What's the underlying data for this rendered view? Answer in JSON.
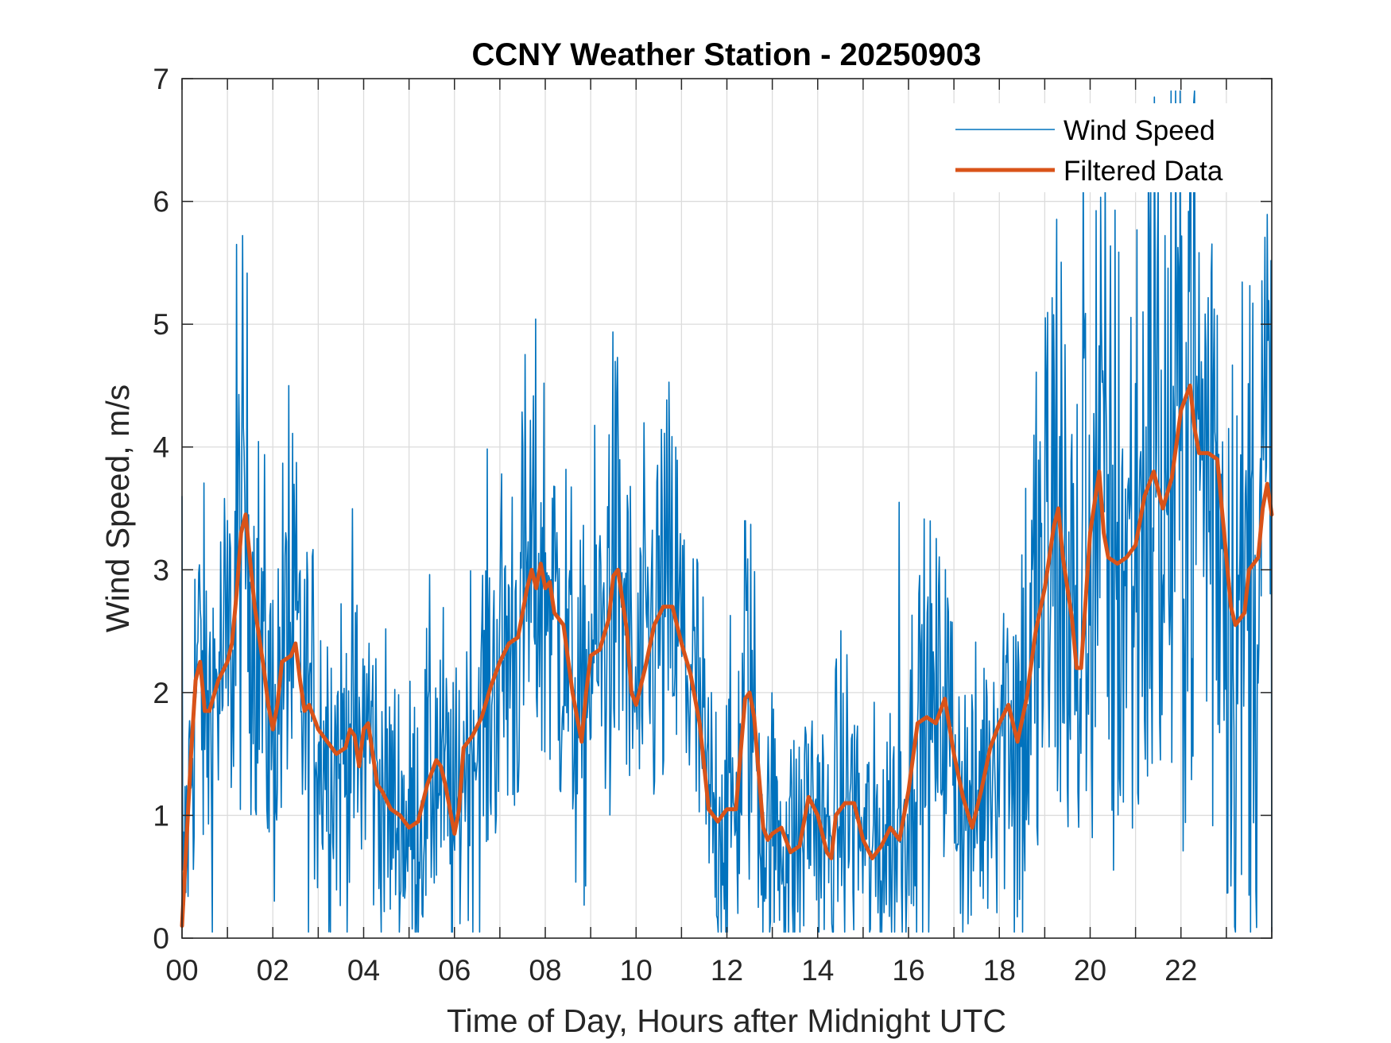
{
  "chart_data": {
    "type": "line",
    "title": "CCNY Weather Station - 20250903",
    "xlabel": "Time of Day, Hours after Midnight UTC",
    "ylabel": "Wind Speed, m/s",
    "xlim": [
      0,
      24
    ],
    "ylim": [
      0,
      7
    ],
    "xticks": [
      0,
      2,
      4,
      6,
      8,
      10,
      12,
      14,
      16,
      18,
      20,
      22
    ],
    "xtick_labels": [
      "00",
      "02",
      "04",
      "06",
      "08",
      "10",
      "12",
      "14",
      "16",
      "18",
      "20",
      "22"
    ],
    "yticks": [
      0,
      1,
      2,
      3,
      4,
      5,
      6,
      7
    ],
    "ytick_labels": [
      "0",
      "1",
      "2",
      "3",
      "4",
      "5",
      "6",
      "7"
    ],
    "grid": true,
    "legend_position": "top-right",
    "colors": {
      "wind": "#0072BD",
      "filtered": "#D95319",
      "axis": "#262626",
      "grid": "#DCDCDC"
    },
    "series": [
      {
        "name": "Wind Speed",
        "style": "thin",
        "generated_from": "Filtered Data",
        "extreme_values": {
          "x": [
            1.2,
            2.35,
            7.5,
            9.4,
            12.4,
            15.8,
            19.85,
            21.42,
            22.2,
            23.5
          ],
          "y": [
            5.65,
            4.5,
            4.0,
            4.1,
            3.4,
            3.55,
            6.35,
            6.85,
            6.4,
            0.35
          ]
        }
      },
      {
        "name": "Filtered Data",
        "style": "thick",
        "x": [
          0.0,
          0.1,
          0.2,
          0.3,
          0.4,
          0.5,
          0.6,
          0.8,
          1.0,
          1.1,
          1.2,
          1.3,
          1.4,
          1.6,
          1.8,
          1.9,
          2.0,
          2.1,
          2.2,
          2.4,
          2.5,
          2.6,
          2.7,
          2.8,
          3.0,
          3.2,
          3.4,
          3.6,
          3.7,
          3.8,
          3.9,
          4.0,
          4.1,
          4.3,
          4.4,
          4.6,
          4.8,
          5.0,
          5.2,
          5.4,
          5.6,
          5.7,
          5.8,
          6.0,
          6.1,
          6.2,
          6.4,
          6.6,
          6.8,
          7.0,
          7.2,
          7.4,
          7.6,
          7.7,
          7.8,
          7.9,
          8.0,
          8.1,
          8.2,
          8.4,
          8.6,
          8.8,
          8.9,
          9.0,
          9.2,
          9.4,
          9.5,
          9.6,
          9.8,
          9.9,
          10.0,
          10.2,
          10.4,
          10.6,
          10.8,
          11.0,
          11.2,
          11.4,
          11.6,
          11.8,
          12.0,
          12.2,
          12.4,
          12.5,
          12.6,
          12.8,
          12.9,
          13.0,
          13.2,
          13.4,
          13.6,
          13.8,
          14.0,
          14.2,
          14.3,
          14.4,
          14.6,
          14.8,
          15.0,
          15.2,
          15.4,
          15.6,
          15.8,
          16.0,
          16.2,
          16.4,
          16.6,
          16.8,
          17.0,
          17.2,
          17.4,
          17.6,
          17.8,
          18.0,
          18.2,
          18.4,
          18.6,
          18.8,
          19.0,
          19.2,
          19.3,
          19.4,
          19.6,
          19.7,
          19.8,
          20.0,
          20.2,
          20.3,
          20.4,
          20.6,
          20.8,
          21.0,
          21.2,
          21.4,
          21.6,
          21.8,
          22.0,
          22.2,
          22.3,
          22.4,
          22.6,
          22.8,
          23.0,
          23.1,
          23.2,
          23.3,
          23.4,
          23.5,
          23.6,
          23.7,
          23.8,
          23.9,
          24.0
        ],
        "y": [
          0.1,
          0.8,
          1.5,
          2.1,
          2.25,
          1.85,
          1.85,
          2.1,
          2.25,
          2.4,
          2.8,
          3.3,
          3.45,
          2.7,
          2.2,
          1.9,
          1.7,
          1.9,
          2.25,
          2.3,
          2.4,
          2.1,
          1.85,
          1.9,
          1.7,
          1.6,
          1.5,
          1.55,
          1.7,
          1.65,
          1.4,
          1.7,
          1.75,
          1.25,
          1.2,
          1.05,
          1.0,
          0.9,
          0.95,
          1.25,
          1.45,
          1.4,
          1.25,
          0.85,
          1.05,
          1.55,
          1.65,
          1.8,
          2.05,
          2.25,
          2.4,
          2.45,
          2.85,
          3.0,
          2.85,
          3.05,
          2.85,
          2.9,
          2.65,
          2.55,
          2.0,
          1.6,
          2.0,
          2.3,
          2.35,
          2.6,
          2.95,
          3.0,
          2.5,
          2.0,
          1.9,
          2.2,
          2.55,
          2.7,
          2.7,
          2.4,
          2.15,
          1.75,
          1.05,
          0.95,
          1.05,
          1.05,
          1.95,
          2.0,
          1.8,
          0.9,
          0.8,
          0.85,
          0.9,
          0.7,
          0.75,
          1.15,
          1.0,
          0.7,
          0.65,
          1.0,
          1.1,
          1.1,
          0.8,
          0.65,
          0.75,
          0.9,
          0.8,
          1.2,
          1.75,
          1.8,
          1.75,
          1.95,
          1.5,
          1.15,
          0.9,
          1.2,
          1.55,
          1.75,
          1.9,
          1.6,
          1.95,
          2.5,
          2.85,
          3.35,
          3.5,
          3.1,
          2.6,
          2.2,
          2.2,
          3.3,
          3.8,
          3.3,
          3.1,
          3.05,
          3.1,
          3.2,
          3.6,
          3.8,
          3.5,
          3.75,
          4.3,
          4.5,
          4.15,
          3.95,
          3.95,
          3.9,
          3.1,
          2.7,
          2.55,
          2.6,
          2.65,
          3.0,
          3.05,
          3.1,
          3.5,
          3.7,
          3.45
        ]
      }
    ]
  }
}
